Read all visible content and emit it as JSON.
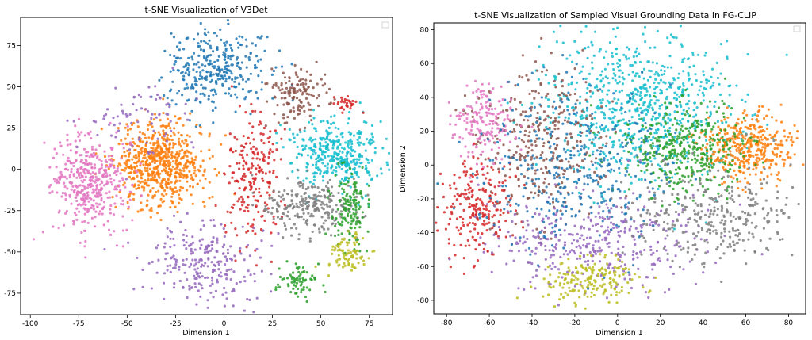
{
  "charts": [
    {
      "id": "left",
      "title": "t-SNE Visualization of V3Det",
      "xlabel": "Dimension 1",
      "ylabel": "",
      "xticks": [
        "-100",
        "-75",
        "-50",
        "-25",
        "0",
        "25",
        "50",
        "75"
      ],
      "yticks": [
        "75",
        "50",
        "25",
        "0",
        "-25",
        "-50",
        "-75"
      ]
    },
    {
      "id": "right",
      "title": "t-SNE Visualization of Sampled Visual Grounding Data in FG-CLIP",
      "xlabel": "Dimension 1",
      "ylabel": "Dimension 2",
      "xticks": [
        "-80",
        "-60",
        "-40",
        "-20",
        "0",
        "20",
        "40",
        "60",
        "80"
      ],
      "yticks": [
        "80",
        "60",
        "40",
        "20",
        "0",
        "-20",
        "-40",
        "-60",
        "-80"
      ]
    }
  ],
  "chart_data": [
    {
      "type": "scatter",
      "title": "t-SNE Visualization of V3Det",
      "xlabel": "Dimension 1",
      "ylabel": "",
      "xlim": [
        -105,
        87
      ],
      "ylim": [
        -88,
        92
      ],
      "legend": "top-right (empty)",
      "grid": false,
      "clusters": [
        {
          "color": "#1f77b4",
          "cx": -5,
          "cy": 60,
          "sx": 13,
          "sy": 12,
          "n": 320
        },
        {
          "color": "#ff7f0e",
          "cx": -32,
          "cy": 3,
          "sx": 12,
          "sy": 13,
          "n": 650
        },
        {
          "color": "#e377c2",
          "cx": -70,
          "cy": -8,
          "sx": 10,
          "sy": 14,
          "n": 420
        },
        {
          "color": "#17becf",
          "cx": 58,
          "cy": 10,
          "sx": 13,
          "sy": 10,
          "n": 380
        },
        {
          "color": "#8c564b",
          "cx": 38,
          "cy": 46,
          "sx": 7,
          "sy": 8,
          "n": 140
        },
        {
          "color": "#d62728",
          "cx": 15,
          "cy": -5,
          "sx": 7,
          "sy": 20,
          "n": 220
        },
        {
          "color": "#d62728",
          "cx": 62,
          "cy": 40,
          "sx": 3,
          "sy": 3,
          "n": 30
        },
        {
          "color": "#7f7f7f",
          "cx": 45,
          "cy": -22,
          "sx": 12,
          "sy": 8,
          "n": 250
        },
        {
          "color": "#2ca02c",
          "cx": 65,
          "cy": -25,
          "sx": 5,
          "sy": 12,
          "n": 140
        },
        {
          "color": "#2ca02c",
          "cx": 38,
          "cy": -68,
          "sx": 5,
          "sy": 5,
          "n": 70
        },
        {
          "color": "#bcbd22",
          "cx": 63,
          "cy": -52,
          "sx": 6,
          "sy": 6,
          "n": 90
        },
        {
          "color": "#9467bd",
          "cx": -10,
          "cy": -55,
          "sx": 15,
          "sy": 12,
          "n": 240
        },
        {
          "color": "#9467bd",
          "cx": -45,
          "cy": 30,
          "sx": 12,
          "sy": 12,
          "n": 80
        }
      ]
    },
    {
      "type": "scatter",
      "title": "t-SNE Visualization of Sampled Visual Grounding Data in FG-CLIP",
      "xlabel": "Dimension 1",
      "ylabel": "Dimension 2",
      "xlim": [
        -86,
        88
      ],
      "ylim": [
        -88,
        84
      ],
      "legend": "top-right (empty)",
      "grid": false,
      "clusters": [
        {
          "color": "#17becf",
          "cx": 10,
          "cy": 35,
          "sx": 22,
          "sy": 22,
          "n": 750
        },
        {
          "color": "#ff7f0e",
          "cx": 62,
          "cy": 10,
          "sx": 10,
          "sy": 9,
          "n": 380
        },
        {
          "color": "#2ca02c",
          "cx": 30,
          "cy": 10,
          "sx": 14,
          "sy": 13,
          "n": 380
        },
        {
          "color": "#8c564b",
          "cx": -35,
          "cy": 15,
          "sx": 14,
          "sy": 22,
          "n": 330
        },
        {
          "color": "#e377c2",
          "cx": -62,
          "cy": 25,
          "sx": 7,
          "sy": 12,
          "n": 180
        },
        {
          "color": "#d62728",
          "cx": -65,
          "cy": -25,
          "sx": 9,
          "sy": 15,
          "n": 230
        },
        {
          "color": "#9467bd",
          "cx": -10,
          "cy": -45,
          "sx": 25,
          "sy": 14,
          "n": 380
        },
        {
          "color": "#bcbd22",
          "cx": -12,
          "cy": -68,
          "sx": 11,
          "sy": 7,
          "n": 190
        },
        {
          "color": "#7f7f7f",
          "cx": 45,
          "cy": -30,
          "sx": 20,
          "sy": 14,
          "n": 320
        },
        {
          "color": "#1f77b4",
          "cx": -20,
          "cy": 0,
          "sx": 22,
          "sy": 25,
          "n": 380
        }
      ]
    }
  ]
}
